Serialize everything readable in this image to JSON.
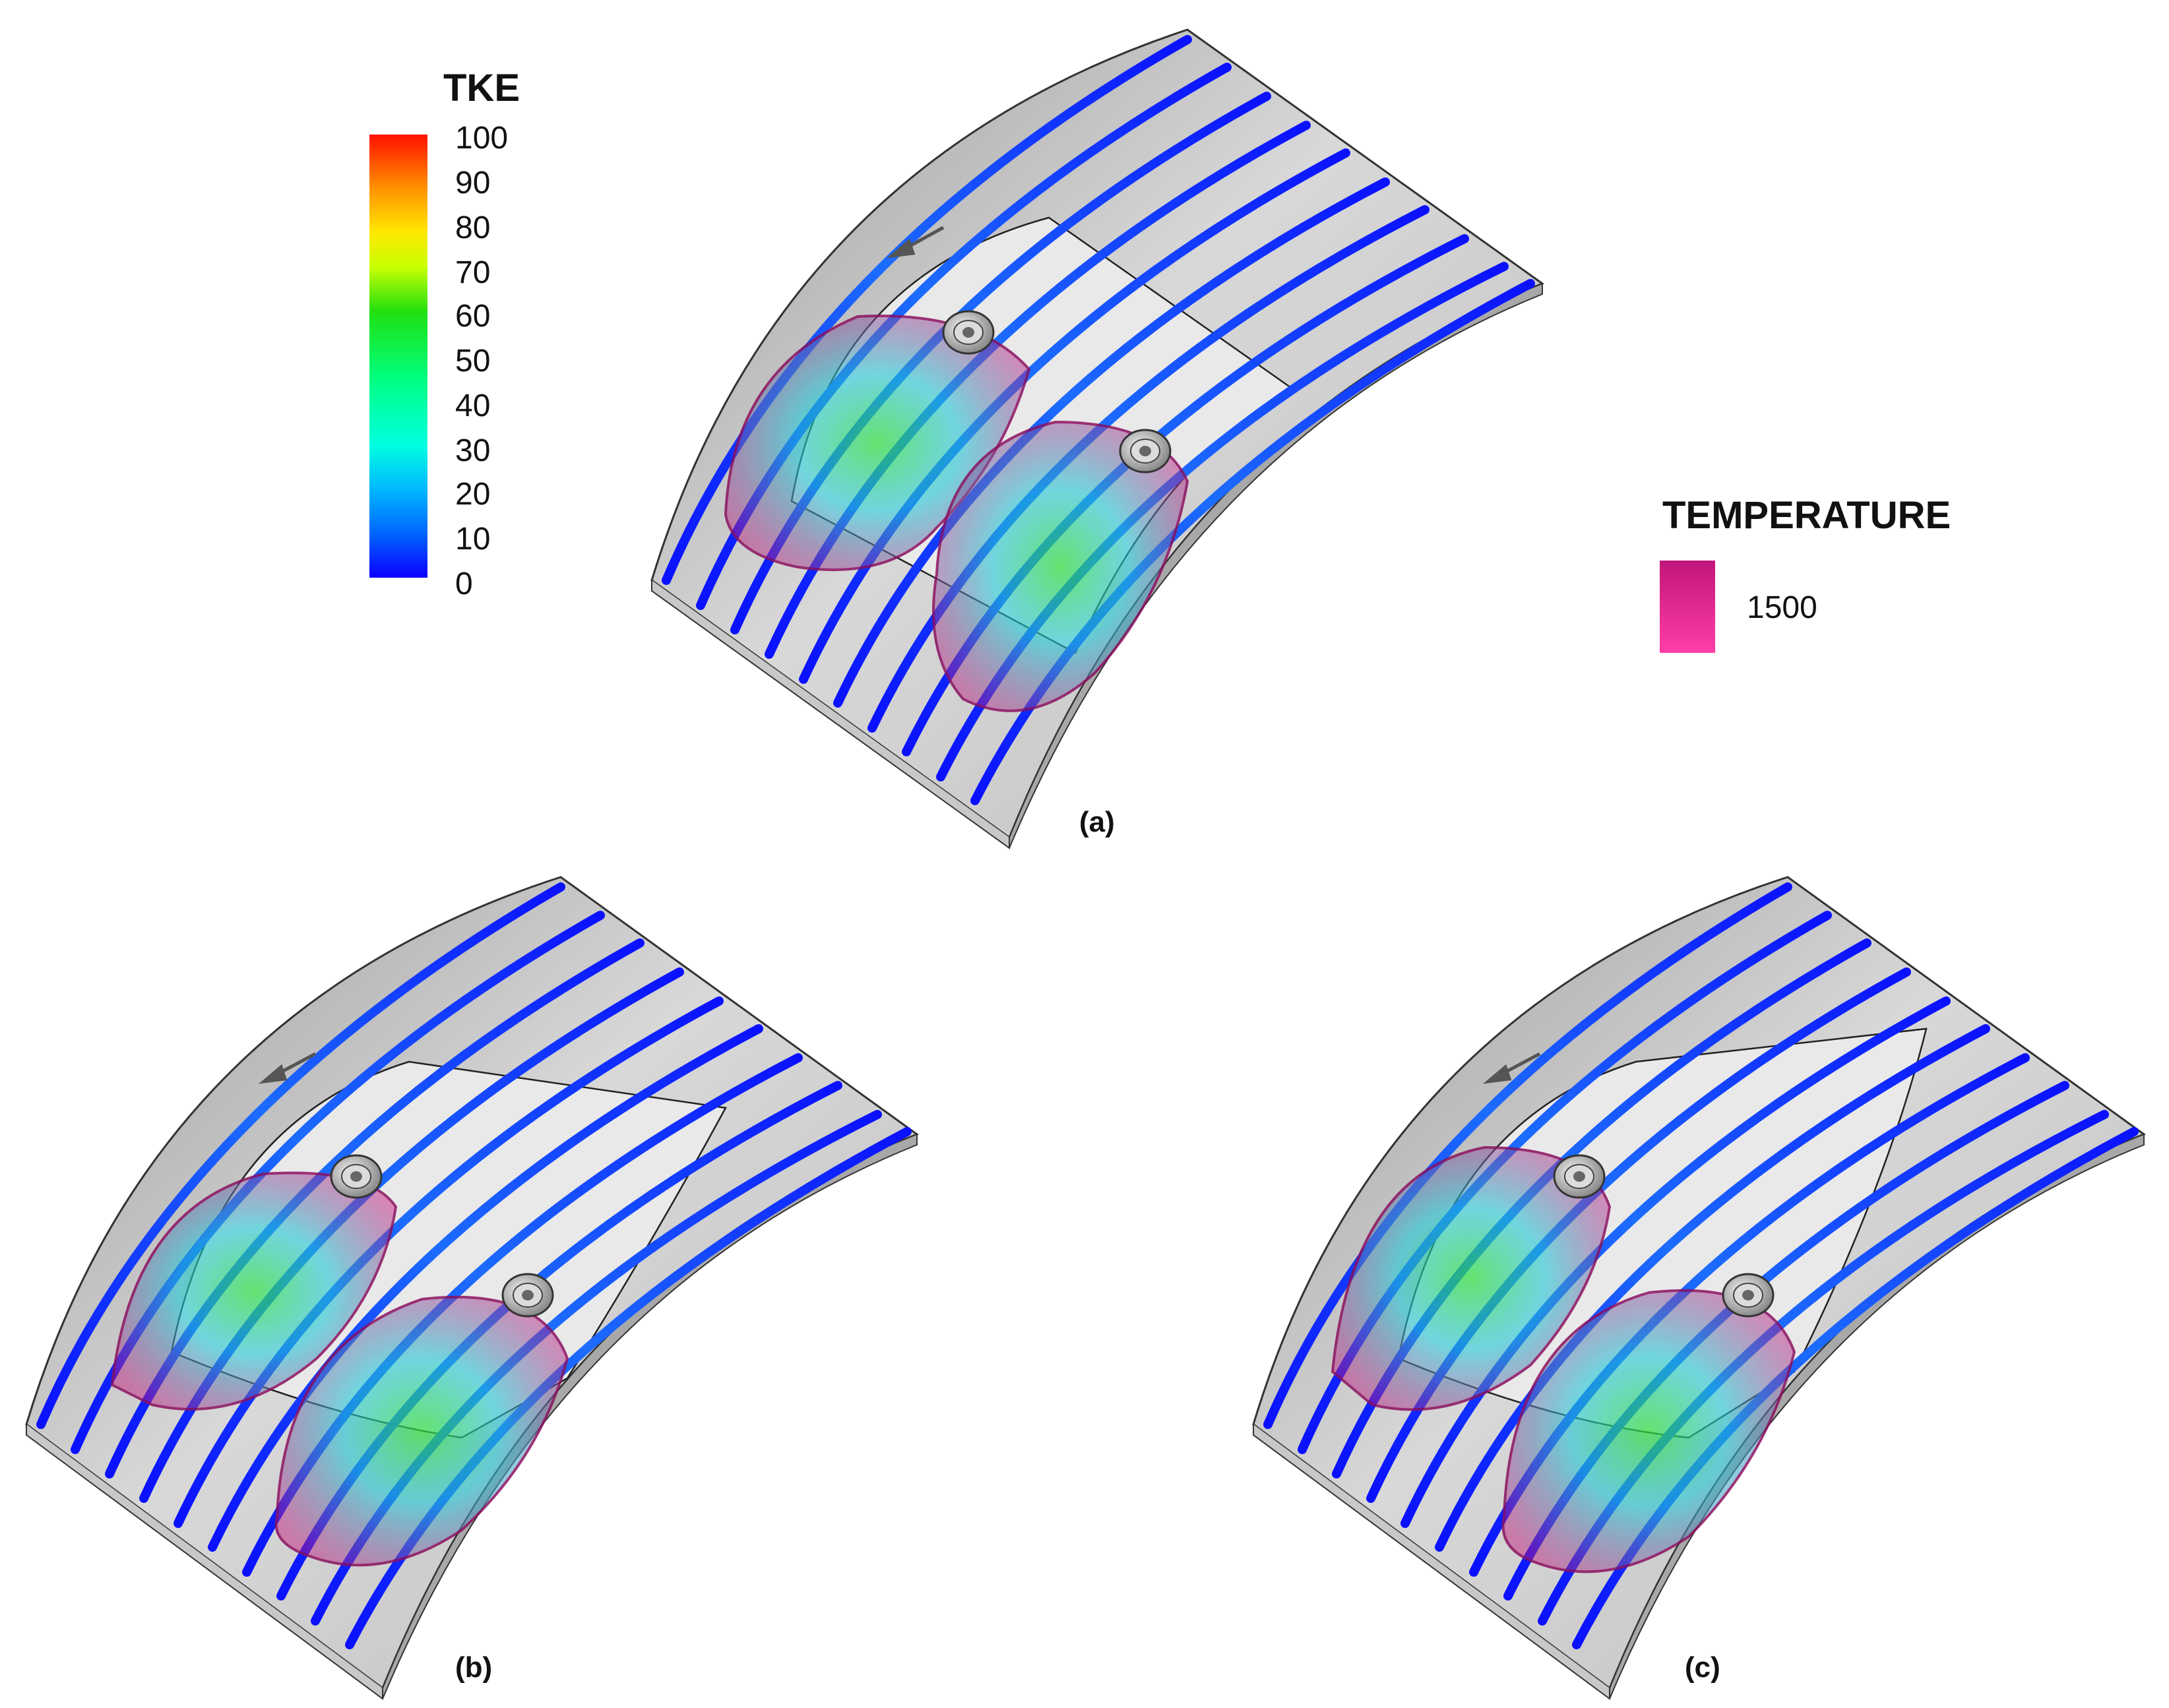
{
  "tke_legend": {
    "title": "TKE",
    "ticks": [
      "100",
      "90",
      "80",
      "70",
      "60",
      "50",
      "40",
      "30",
      "20",
      "10",
      "0"
    ]
  },
  "temperature_legend": {
    "title": "TEMPERATURE",
    "value": "1500",
    "color": "#d21a8a"
  },
  "panels": [
    {
      "label": "(a)"
    },
    {
      "label": "(b)"
    },
    {
      "label": "(c)"
    }
  ]
}
